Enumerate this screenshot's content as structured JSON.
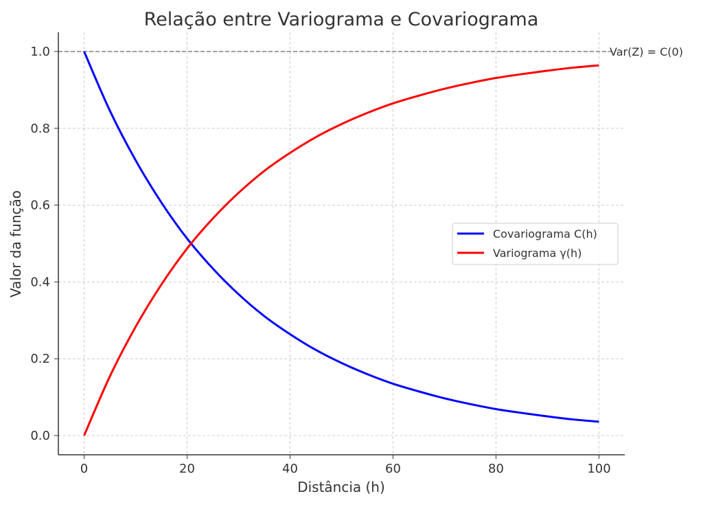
{
  "chart_data": {
    "type": "line",
    "title": "Relação entre Variograma e Covariograma",
    "xlabel": "Distância (h)",
    "ylabel": "Valor da função",
    "xlim": [
      -5,
      105
    ],
    "ylim": [
      -0.05,
      1.05
    ],
    "xticks": [
      "0",
      "20",
      "40",
      "60",
      "80",
      "100"
    ],
    "yticks": [
      "0.0",
      "0.2",
      "0.4",
      "0.6",
      "0.8",
      "1.0"
    ],
    "grid": true,
    "legend_position": "center-right",
    "x": [
      0,
      5,
      10,
      15,
      20,
      25,
      30,
      35,
      40,
      45,
      50,
      55,
      60,
      65,
      70,
      75,
      80,
      85,
      90,
      95,
      100
    ],
    "series": [
      {
        "name": "Covariograma C(h)",
        "color": "#0000ff",
        "values": [
          1,
          0.846,
          0.717,
          0.607,
          0.513,
          0.435,
          0.368,
          0.311,
          0.264,
          0.223,
          0.189,
          0.16,
          0.135,
          0.115,
          0.097,
          0.082,
          0.069,
          0.059,
          0.05,
          0.042,
          0.036
        ]
      },
      {
        "name": "Variograma γ(h)",
        "color": "#ff0000",
        "values": [
          0,
          0.154,
          0.283,
          0.393,
          0.487,
          0.565,
          0.632,
          0.689,
          0.736,
          0.777,
          0.811,
          0.84,
          0.865,
          0.885,
          0.903,
          0.918,
          0.931,
          0.941,
          0.95,
          0.958,
          0.964
        ]
      }
    ],
    "reference_line": {
      "y": 1.0,
      "label": "Var(Z) = C(0)",
      "color": "#808080",
      "style": "dashed"
    }
  }
}
